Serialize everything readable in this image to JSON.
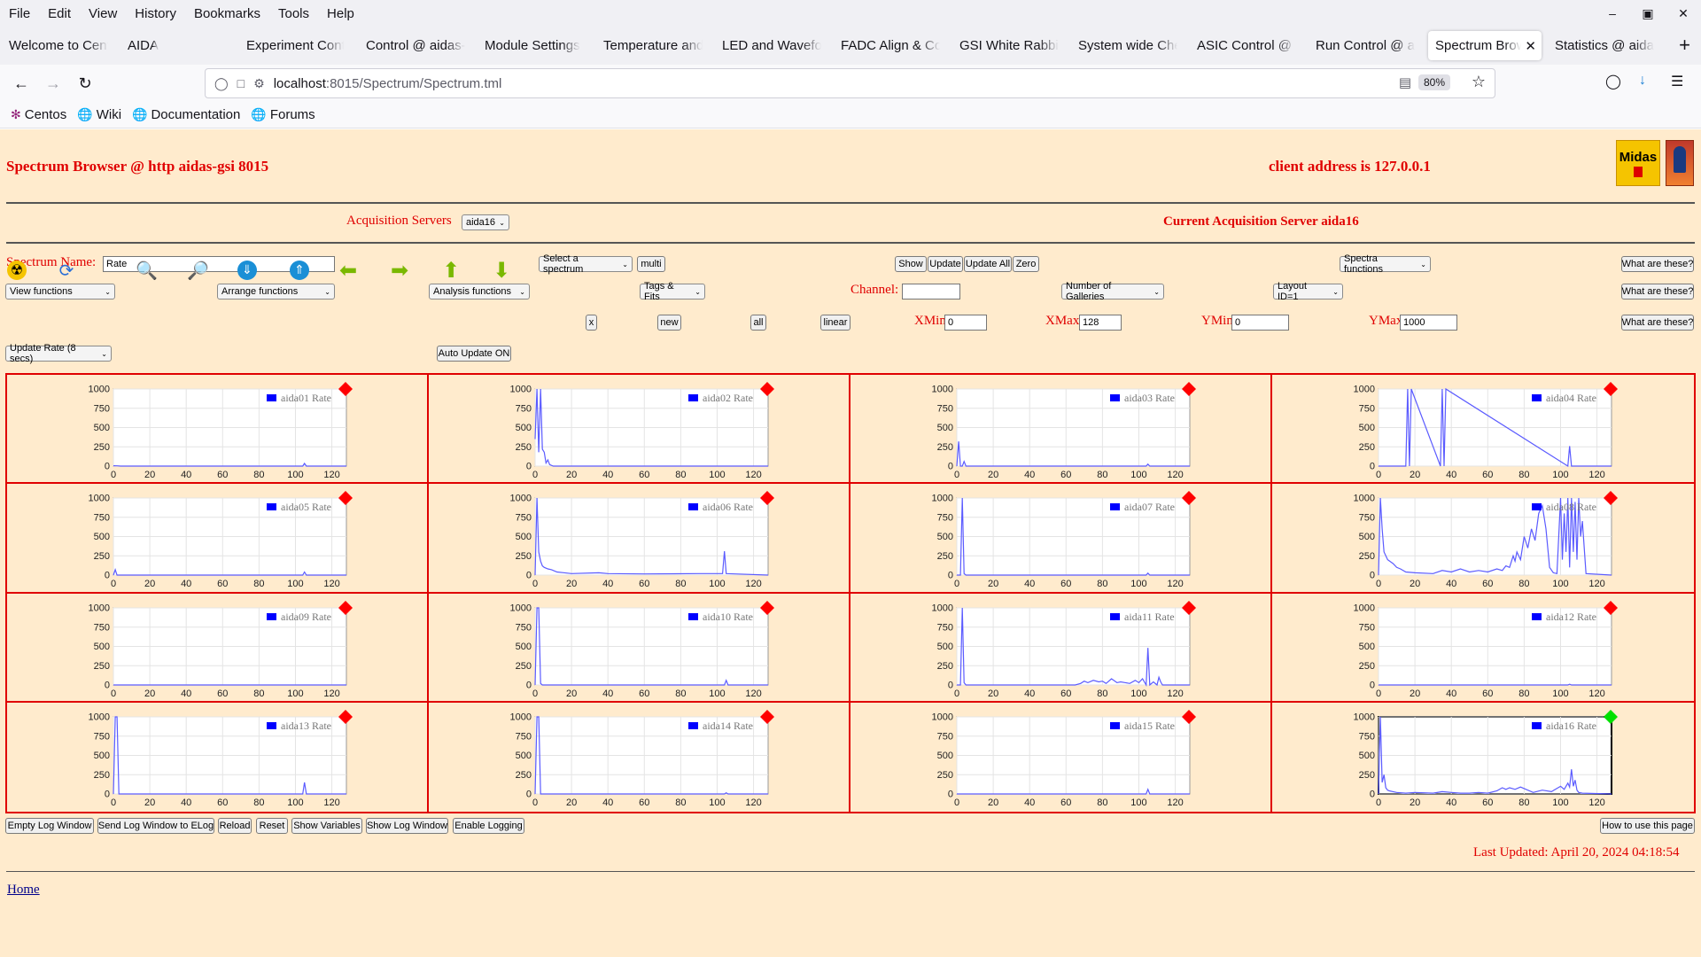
{
  "browser": {
    "menu": [
      "File",
      "Edit",
      "View",
      "History",
      "Bookmarks",
      "Tools",
      "Help"
    ],
    "tabs": [
      {
        "label": "Welcome to Cent",
        "active": false
      },
      {
        "label": "AIDA",
        "active": false
      },
      {
        "label": "Experiment Contr",
        "active": false
      },
      {
        "label": "Control @ aidas-",
        "active": false
      },
      {
        "label": "Module Settings",
        "active": false
      },
      {
        "label": "Temperature and",
        "active": false
      },
      {
        "label": "LED and Wavefor",
        "active": false
      },
      {
        "label": "FADC Align & Co",
        "active": false
      },
      {
        "label": "GSI White Rabbit",
        "active": false
      },
      {
        "label": "System wide Che",
        "active": false
      },
      {
        "label": "ASIC Control @ a",
        "active": false
      },
      {
        "label": "Run Control @ ai",
        "active": false
      },
      {
        "label": "Spectrum Brow",
        "active": true
      },
      {
        "label": "Statistics @ aida",
        "active": false
      }
    ],
    "url": {
      "host": "localhost",
      "path": ":8015/Spectrum/Spectrum.tml"
    },
    "zoom": "80%",
    "bookmarks": [
      "Centos",
      "Wiki",
      "Documentation",
      "Forums"
    ]
  },
  "header": {
    "title": "Spectrum Browser @ http aidas-gsi 8015",
    "client": "client address is 127.0.0.1",
    "logo_text": "Midas"
  },
  "acquisition": {
    "label": "Acquisition Servers",
    "server_select": "aida16",
    "current": "Current Acquisition Server aida16"
  },
  "controls": {
    "spectrum_name_label": "Spectrum Name:",
    "spectrum_name_value": "Rate",
    "select_spectrum": "Select a spectrum",
    "multi": "multi",
    "show": "Show",
    "update": "Update",
    "update_all": "Update All",
    "zero": "Zero",
    "spectra_functions": "Spectra functions",
    "what_are_these": "What are these?",
    "view_functions": "View functions",
    "arrange_functions": "Arrange functions",
    "analysis_functions": "Analysis functions",
    "tags_fits": "Tags & Fits",
    "channel_label": "Channel:",
    "channel_value": "",
    "num_galleries": "Number of Galleries",
    "layout": "Layout ID=1",
    "x_btn": "x",
    "new_btn": "new",
    "all_btn": "all",
    "linear_btn": "linear",
    "xmin_label": "XMin",
    "xmin_value": "0",
    "xmax_label": "XMax",
    "xmax_value": "128",
    "ymin_label": "YMin",
    "ymin_value": "0",
    "ymax_label": "YMax",
    "ymax_value": "1000",
    "update_rate": "Update Rate (8 secs)",
    "auto_update": "Auto Update ON"
  },
  "icons": [
    "radiation-icon",
    "refresh-icon",
    "zoom-in-icon",
    "zoom-out-icon",
    "scroll-down-icon",
    "scroll-up-icon",
    "arrow-left-icon",
    "arrow-right-icon",
    "arrow-up-icon",
    "arrow-down-icon"
  ],
  "chart_data": [
    {
      "type": "line",
      "legend": "aida01 Rate",
      "xlim": [
        0,
        128
      ],
      "ylim": [
        0,
        1000
      ],
      "x": [
        0,
        2,
        4,
        104,
        105,
        106,
        128
      ],
      "y": [
        5,
        3,
        0,
        0,
        35,
        0,
        0
      ],
      "status": "red"
    },
    {
      "type": "line",
      "legend": "aida02 Rate",
      "xlim": [
        0,
        128
      ],
      "ylim": [
        0,
        1000
      ],
      "x": [
        0,
        1,
        2,
        3,
        4,
        5,
        6,
        7,
        8,
        10,
        128
      ],
      "y": [
        350,
        1000,
        180,
        1000,
        220,
        180,
        40,
        80,
        20,
        0,
        0
      ],
      "status": "red"
    },
    {
      "type": "line",
      "legend": "aida03 Rate",
      "xlim": [
        0,
        128
      ],
      "ylim": [
        0,
        1000
      ],
      "x": [
        0,
        1,
        2,
        3,
        4,
        5,
        104,
        105,
        106,
        128
      ],
      "y": [
        0,
        320,
        0,
        0,
        60,
        0,
        0,
        25,
        0,
        0
      ],
      "status": "red"
    },
    {
      "type": "line",
      "legend": "aida04 Rate",
      "xlim": [
        0,
        128
      ],
      "ylim": [
        0,
        1000
      ],
      "x": [
        0,
        15,
        16,
        17,
        18,
        34,
        35,
        36,
        37,
        104,
        105,
        106,
        128
      ],
      "y": [
        0,
        0,
        1000,
        0,
        1000,
        0,
        1000,
        0,
        1000,
        0,
        260,
        0,
        0
      ],
      "status": "red"
    },
    {
      "type": "line",
      "legend": "aida05 Rate",
      "xlim": [
        0,
        128
      ],
      "ylim": [
        0,
        1000
      ],
      "x": [
        0,
        1,
        2,
        3,
        104,
        105,
        106,
        128
      ],
      "y": [
        0,
        70,
        0,
        0,
        0,
        40,
        0,
        0
      ],
      "status": "red"
    },
    {
      "type": "line",
      "legend": "aida06 Rate",
      "xlim": [
        0,
        128
      ],
      "ylim": [
        0,
        1000
      ],
      "x": [
        0,
        1,
        2,
        3,
        4,
        5,
        7,
        9,
        12,
        20,
        35,
        40,
        60,
        90,
        100,
        103,
        104,
        105,
        110,
        128
      ],
      "y": [
        0,
        1000,
        300,
        180,
        120,
        100,
        80,
        70,
        40,
        20,
        30,
        20,
        15,
        20,
        20,
        20,
        310,
        20,
        15,
        0
      ],
      "status": "red"
    },
    {
      "type": "line",
      "legend": "aida07 Rate",
      "xlim": [
        0,
        128
      ],
      "ylim": [
        0,
        1000
      ],
      "x": [
        0,
        2,
        3,
        4,
        5,
        104,
        105,
        106,
        128
      ],
      "y": [
        0,
        0,
        1000,
        20,
        0,
        0,
        25,
        0,
        0
      ],
      "status": "red"
    },
    {
      "type": "line",
      "legend": "aida08 Rate",
      "xlim": [
        0,
        128
      ],
      "ylim": [
        0,
        1000
      ],
      "x": [
        0,
        1,
        2,
        3,
        5,
        8,
        10,
        12,
        15,
        20,
        30,
        35,
        40,
        45,
        50,
        55,
        60,
        65,
        68,
        70,
        72,
        74,
        75,
        76,
        78,
        80,
        82,
        84,
        86,
        88,
        90,
        92,
        94,
        96,
        98,
        100,
        101,
        102,
        103,
        104,
        105,
        106,
        107,
        108,
        109,
        110,
        111,
        112,
        114,
        128
      ],
      "y": [
        0,
        1000,
        600,
        300,
        200,
        150,
        100,
        80,
        40,
        30,
        20,
        60,
        40,
        80,
        40,
        60,
        40,
        80,
        60,
        120,
        100,
        250,
        180,
        300,
        200,
        500,
        350,
        600,
        450,
        800,
        900,
        600,
        100,
        30,
        20,
        1000,
        200,
        800,
        300,
        1000,
        100,
        1000,
        300,
        950,
        200,
        1000,
        500,
        700,
        20,
        0
      ],
      "status": "red"
    },
    {
      "type": "line",
      "legend": "aida09 Rate",
      "xlim": [
        0,
        128
      ],
      "ylim": [
        0,
        1000
      ],
      "x": [
        0,
        128
      ],
      "y": [
        0,
        0
      ],
      "status": "red"
    },
    {
      "type": "line",
      "legend": "aida10 Rate",
      "xlim": [
        0,
        128
      ],
      "ylim": [
        0,
        1000
      ],
      "x": [
        0,
        1,
        2,
        3,
        4,
        104,
        105,
        106,
        128
      ],
      "y": [
        0,
        1000,
        1000,
        20,
        0,
        0,
        60,
        0,
        0
      ],
      "status": "red"
    },
    {
      "type": "line",
      "legend": "aida11 Rate",
      "xlim": [
        0,
        128
      ],
      "ylim": [
        0,
        1000
      ],
      "x": [
        0,
        2,
        3,
        4,
        5,
        65,
        68,
        70,
        72,
        75,
        78,
        80,
        82,
        85,
        88,
        90,
        95,
        98,
        100,
        102,
        104,
        105,
        106,
        108,
        110,
        111,
        112,
        113,
        128
      ],
      "y": [
        0,
        0,
        1000,
        30,
        0,
        0,
        20,
        50,
        30,
        60,
        40,
        50,
        20,
        80,
        30,
        40,
        20,
        60,
        30,
        80,
        0,
        480,
        0,
        40,
        0,
        100,
        40,
        0,
        0
      ],
      "status": "red"
    },
    {
      "type": "line",
      "legend": "aida12 Rate",
      "xlim": [
        0,
        128
      ],
      "ylim": [
        0,
        1000
      ],
      "x": [
        0,
        104,
        105,
        106,
        128
      ],
      "y": [
        0,
        0,
        10,
        0,
        0
      ],
      "status": "red"
    },
    {
      "type": "line",
      "legend": "aida13 Rate",
      "xlim": [
        0,
        128
      ],
      "ylim": [
        0,
        1000
      ],
      "x": [
        0,
        1,
        2,
        3,
        4,
        104,
        105,
        106,
        128
      ],
      "y": [
        0,
        1000,
        1000,
        0,
        0,
        0,
        150,
        0,
        0
      ],
      "status": "red"
    },
    {
      "type": "line",
      "legend": "aida14 Rate",
      "xlim": [
        0,
        128
      ],
      "ylim": [
        0,
        1000
      ],
      "x": [
        0,
        1,
        2,
        3,
        104,
        105,
        106,
        128
      ],
      "y": [
        0,
        1000,
        1000,
        0,
        0,
        15,
        0,
        0
      ],
      "status": "red"
    },
    {
      "type": "line",
      "legend": "aida15 Rate",
      "xlim": [
        0,
        128
      ],
      "ylim": [
        0,
        1000
      ],
      "x": [
        0,
        104,
        105,
        106,
        128
      ],
      "y": [
        0,
        0,
        60,
        0,
        0
      ],
      "status": "red"
    },
    {
      "type": "line",
      "legend": "aida16 Rate",
      "xlim": [
        0,
        128
      ],
      "ylim": [
        0,
        1000
      ],
      "x": [
        0,
        1,
        2,
        3,
        4,
        5,
        6,
        8,
        10,
        15,
        20,
        30,
        35,
        40,
        45,
        50,
        55,
        60,
        65,
        68,
        70,
        72,
        75,
        78,
        80,
        85,
        90,
        95,
        100,
        102,
        104,
        105,
        106,
        107,
        108,
        109,
        110,
        112,
        128
      ],
      "y": [
        0,
        1000,
        150,
        250,
        80,
        50,
        40,
        30,
        20,
        10,
        20,
        10,
        30,
        20,
        10,
        10,
        20,
        10,
        40,
        80,
        60,
        80,
        60,
        90,
        70,
        20,
        50,
        30,
        100,
        60,
        140,
        90,
        320,
        100,
        180,
        50,
        20,
        10,
        0
      ],
      "status": "green"
    }
  ],
  "status_colors": {
    "red": "#ff0000",
    "green": "#00e000"
  },
  "footer": {
    "buttons": [
      "Empty Log Window",
      "Send Log Window to ELog",
      "Reload",
      "Reset",
      "Show Variables",
      "Show Log Window",
      "Enable Logging"
    ],
    "how_to": "How to use this page",
    "last_updated": "Last Updated: April 20, 2024 04:18:54",
    "home": "Home"
  }
}
